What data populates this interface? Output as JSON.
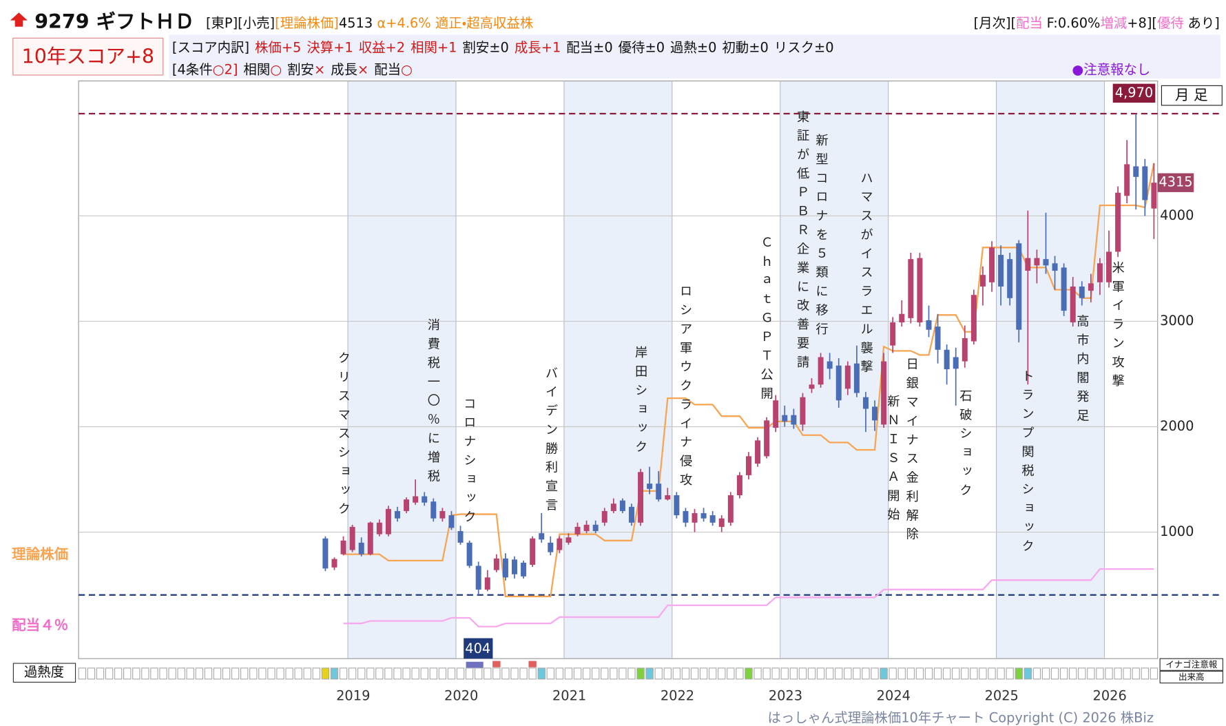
{
  "header": {
    "code_name": "9279 ギフトＨＤ",
    "tags": "[東P][小売]",
    "theory_label": "[理論株価]",
    "theory_price": 4513,
    "alpha": "α+4.6%",
    "rating": "適正・超高収益株",
    "right": [
      {
        "text": "[月次][",
        "color": "#111"
      },
      {
        "text": "配当",
        "color": "#f06ec8"
      },
      {
        "text": "F:0.60%",
        "color": "#111"
      },
      {
        "text": "増減",
        "color": "#f06ec8"
      },
      {
        "text": "+8][",
        "color": "#111"
      },
      {
        "text": "優待",
        "color": "#f06ec8"
      },
      {
        "text": "あり]",
        "color": "#111"
      }
    ],
    "score": "10年スコア+8",
    "breakdown_label": "[スコア内訳]",
    "breakdown": [
      {
        "text": "株価+5",
        "color": "#d01818"
      },
      {
        "text": "決算+1",
        "color": "#d01818"
      },
      {
        "text": "収益+2",
        "color": "#d01818"
      },
      {
        "text": "相関+1",
        "color": "#d01818"
      },
      {
        "text": "割安±0",
        "color": "#111"
      },
      {
        "text": "成長+1",
        "color": "#d01818"
      },
      {
        "text": "配当±0",
        "color": "#111"
      },
      {
        "text": "優待±0",
        "color": "#111"
      },
      {
        "text": "過熱±0",
        "color": "#111"
      },
      {
        "text": "初動±0",
        "color": "#111"
      },
      {
        "text": "リスク±0",
        "color": "#111"
      }
    ],
    "conditions_label": "[4条件",
    "conditions_count": "○2]",
    "conditions": [
      {
        "text": "相関",
        "mark": "○"
      },
      {
        "text": "割安",
        "mark": "×"
      },
      {
        "text": "成長",
        "mark": "×"
      },
      {
        "text": "配当",
        "mark": "○"
      }
    ],
    "alert": "●注意報なし"
  },
  "chart_data": {
    "type": "candlestick",
    "period_label": "月 足",
    "overheat_label": "過熱度",
    "inago_label": "イナゴ注意報",
    "volume_label": "出来高",
    "footer": "はっしゃん式理論株価10年チャート Copyright (C) 2026 株Biz",
    "up_color": "#b8436e",
    "down_color": "#4a6db5",
    "grid": true,
    "ylim": [
      -200,
      5280
    ],
    "yticks": [
      1000,
      2000,
      3000,
      4000
    ],
    "max": {
      "value": 4970,
      "label": "4,970"
    },
    "min": 404,
    "last": 4315,
    "categories": [
      null,
      null,
      null,
      "2019",
      null,
      null,
      null,
      null,
      null,
      null,
      null,
      null,
      null,
      null,
      null,
      "2020",
      null,
      null,
      null,
      null,
      null,
      null,
      null,
      null,
      null,
      null,
      null,
      "2021",
      null,
      null,
      null,
      null,
      null,
      null,
      null,
      null,
      null,
      null,
      null,
      "2022",
      null,
      null,
      null,
      null,
      null,
      null,
      null,
      null,
      null,
      null,
      null,
      "2023",
      null,
      null,
      null,
      null,
      null,
      null,
      null,
      null,
      null,
      null,
      null,
      "2024",
      null,
      null,
      null,
      null,
      null,
      null,
      null,
      null,
      null,
      null,
      null,
      "2025",
      null,
      null,
      null,
      null,
      null,
      null,
      null,
      null,
      null,
      null,
      null,
      "2026",
      null,
      null,
      null,
      null,
      null
    ],
    "open": [
      940,
      665,
      790,
      830,
      900,
      790,
      980,
      980,
      1200,
      1200,
      1280,
      1340,
      1290,
      1130,
      1160,
      1010,
      900,
      680,
      455,
      640,
      750,
      740,
      710,
      690,
      990,
      900,
      830,
      900,
      980,
      1010,
      1070,
      1090,
      1200,
      1300,
      1240,
      1090,
      1460,
      1460,
      1310,
      1350,
      1200,
      1090,
      1180,
      1160,
      1050,
      1090,
      1350,
      1540,
      1650,
      1720,
      1990,
      2110,
      2110,
      2020,
      2360,
      2400,
      2620,
      2580,
      2360,
      2600,
      2280,
      2190,
      2020,
      2770,
      2990,
      3030,
      2990,
      3010,
      2950,
      2730,
      2660,
      2620,
      2810,
      3330,
      3370,
      3630,
      3590,
      3740,
      3480,
      3530,
      3590,
      3550,
      3510,
      2990,
      3330,
      3290,
      3370,
      3370,
      3660,
      4190,
      4470,
      4470,
      4070
    ],
    "high": [
      960,
      760,
      960,
      1070,
      950,
      1100,
      1120,
      1250,
      1240,
      1330,
      1500,
      1380,
      1320,
      1230,
      1200,
      1060,
      920,
      720,
      640,
      790,
      800,
      770,
      730,
      960,
      1180,
      960,
      960,
      990,
      1090,
      1110,
      1110,
      1230,
      1320,
      1320,
      1270,
      1600,
      1620,
      1580,
      1420,
      1380,
      1230,
      1220,
      1230,
      1200,
      1160,
      1380,
      1570,
      1760,
      1900,
      2090,
      2300,
      2200,
      2170,
      2320,
      2460,
      2700,
      2700,
      2650,
      2620,
      2770,
      2330,
      2250,
      2700,
      3040,
      3200,
      3650,
      3650,
      3150,
      3070,
      2780,
      2750,
      2960,
      3300,
      3520,
      3760,
      3720,
      3650,
      3770,
      4050,
      3680,
      4030,
      3620,
      3550,
      3420,
      3380,
      3450,
      3600,
      3860,
      4280,
      4720,
      4970,
      4540,
      4500
    ],
    "low": [
      630,
      640,
      780,
      810,
      770,
      780,
      960,
      960,
      1100,
      1180,
      1260,
      1250,
      1100,
      1100,
      1020,
      880,
      660,
      404,
      440,
      620,
      540,
      560,
      560,
      670,
      900,
      780,
      800,
      880,
      960,
      990,
      990,
      1060,
      1180,
      1180,
      1060,
      1060,
      1360,
      1290,
      1300,
      1130,
      1050,
      1000,
      1100,
      1060,
      1000,
      1060,
      1320,
      1500,
      1620,
      1700,
      1950,
      2000,
      1980,
      1960,
      2320,
      2370,
      2450,
      2180,
      2300,
      2280,
      1950,
      1960,
      1990,
      2700,
      2950,
      2980,
      2950,
      2850,
      2600,
      2400,
      2200,
      2560,
      2780,
      3150,
      3280,
      3150,
      3150,
      2800,
      2400,
      3360,
      3450,
      3300,
      3050,
      2950,
      3150,
      3180,
      3250,
      3320,
      3610,
      4120,
      4060,
      4000,
      3780
    ],
    "close": [
      655,
      745,
      920,
      1050,
      790,
      1090,
      1090,
      1220,
      1130,
      1310,
      1340,
      1280,
      1130,
      1200,
      1040,
      900,
      680,
      455,
      570,
      750,
      570,
      600,
      580,
      940,
      930,
      810,
      940,
      950,
      1050,
      1070,
      1010,
      1200,
      1270,
      1200,
      1090,
      1570,
      1410,
      1310,
      1350,
      1160,
      1090,
      1180,
      1130,
      1090,
      1130,
      1350,
      1540,
      1720,
      1870,
      2060,
      2250,
      2050,
      2020,
      2280,
      2400,
      2660,
      2550,
      2250,
      2580,
      2320,
      2170,
      2060,
      2620,
      2990,
      3070,
      3590,
      3600,
      2920,
      2730,
      2545,
      2550,
      2840,
      3250,
      3440,
      3700,
      3330,
      3220,
      2920,
      3600,
      3600,
      3530,
      3480,
      3100,
      3330,
      3220,
      3360,
      3550,
      3660,
      4220,
      4490,
      4370,
      4150,
      4315
    ],
    "lines": [
      {
        "name": "理論株価",
        "color": "#f7a552",
        "values": [
          null,
          null,
          790,
          790,
          790,
          790,
          790,
          730,
          730,
          730,
          730,
          730,
          730,
          730,
          1160,
          1170,
          1170,
          1170,
          1170,
          1170,
          390,
          390,
          390,
          390,
          390,
          390,
          980,
          980,
          980,
          980,
          980,
          920,
          920,
          920,
          920,
          1390,
          1390,
          1390,
          2270,
          2270,
          2270,
          2210,
          2210,
          2210,
          2100,
          2100,
          2100,
          1990,
          1990,
          1990,
          2050,
          2050,
          2050,
          1920,
          1920,
          1920,
          1850,
          1850,
          1850,
          1780,
          1780,
          1780,
          2760,
          2720,
          2720,
          2720,
          2680,
          2680,
          3060,
          3060,
          3060,
          2900,
          2900,
          3700,
          3700,
          3700,
          3700,
          3700,
          3510,
          3510,
          3510,
          3300,
          3300,
          3300,
          3220,
          3220,
          4100,
          4100,
          4100,
          4100,
          4100,
          4080,
          4500
        ]
      },
      {
        "name": "配当４％",
        "color": "#f7a8ee",
        "values": [
          null,
          null,
          134,
          134,
          134,
          157,
          157,
          157,
          157,
          157,
          157,
          157,
          157,
          157,
          187,
          187,
          187,
          104,
          104,
          104,
          134,
          134,
          134,
          134,
          134,
          134,
          194,
          194,
          194,
          194,
          194,
          194,
          194,
          194,
          194,
          194,
          194,
          194,
          306,
          306,
          306,
          306,
          306,
          306,
          306,
          306,
          306,
          306,
          306,
          306,
          381,
          381,
          381,
          381,
          381,
          381,
          381,
          381,
          381,
          381,
          381,
          381,
          455,
          455,
          455,
          455,
          455,
          455,
          455,
          455,
          455,
          455,
          455,
          455,
          545,
          545,
          545,
          545,
          545,
          545,
          545,
          545,
          545,
          545,
          545,
          545,
          650,
          650,
          650,
          650,
          650,
          650,
          650
        ]
      }
    ],
    "overheat_colors": [
      "#e6d21e",
      "#6cc8dc",
      null,
      null,
      null,
      null,
      null,
      null,
      null,
      null,
      null,
      null,
      null,
      null,
      null,
      null,
      null,
      null,
      null,
      null,
      null,
      null,
      null,
      null,
      "#6cc8dc",
      null,
      null,
      null,
      null,
      null,
      null,
      null,
      null,
      null,
      null,
      "#7ed23c",
      "#6cc8dc",
      null,
      null,
      null,
      null,
      null,
      null,
      null,
      null,
      null,
      null,
      "#7ed23c",
      null,
      null,
      null,
      null,
      null,
      null,
      null,
      null,
      null,
      null,
      null,
      null,
      null,
      null,
      "#6cc8dc",
      null,
      null,
      null,
      null,
      null,
      null,
      null,
      null,
      null,
      null,
      null,
      null,
      null,
      null,
      "#7ed23c",
      "#6cc8dc",
      null,
      null,
      null,
      null,
      null,
      null,
      null,
      null,
      null,
      null,
      null,
      null,
      null,
      null
    ],
    "events": [
      "クリスマスショック",
      "消費税一〇％に増税",
      "コロナショック",
      "バイデン勝利宣言",
      "岸田ショック",
      "ロシア軍ウクライナ侵攻",
      "ＣｈａｔＧＰＴ公開",
      "東証が低ＰＢＲ企業に改善要請",
      "新型コロナを５類に移行",
      "ハマスがイスラエル襲撃",
      "新ＮＩＳＡ開始",
      "日銀マイナス金利解除",
      "石破ショック",
      "トランプ関税ショック",
      "高市内閣発足",
      "米軍イラン攻撃"
    ]
  }
}
